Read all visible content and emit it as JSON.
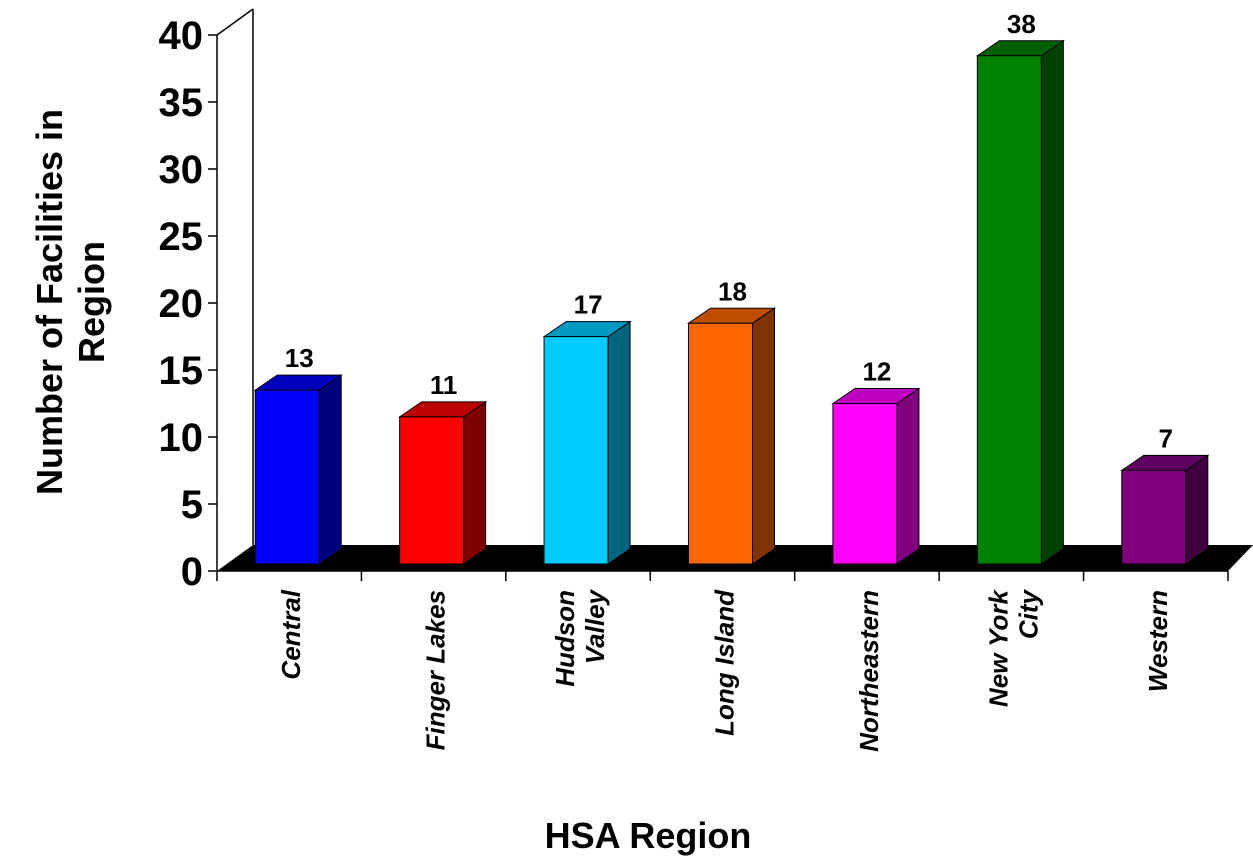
{
  "chart_data": {
    "type": "bar",
    "categories": [
      [
        "Central"
      ],
      [
        "Finger Lakes"
      ],
      [
        "Hudson",
        "Valley"
      ],
      [
        "Long Island"
      ],
      [
        "Northeastern"
      ],
      [
        "New York",
        "City"
      ],
      [
        "Western"
      ]
    ],
    "values": [
      13,
      11,
      17,
      18,
      12,
      38,
      7
    ],
    "colors": [
      "#0000ff",
      "#ff0000",
      "#00ccff",
      "#ff6600",
      "#ff00ff",
      "#008000",
      "#800080"
    ],
    "xlabel": "HSA Region",
    "ylabel": [
      "Number of Facilities in",
      "Region"
    ],
    "ylim": [
      0,
      40
    ],
    "yticks": [
      0,
      5,
      10,
      15,
      20,
      25,
      30,
      35,
      40
    ],
    "grid": false,
    "legend": "none",
    "style": "3d-bar"
  }
}
